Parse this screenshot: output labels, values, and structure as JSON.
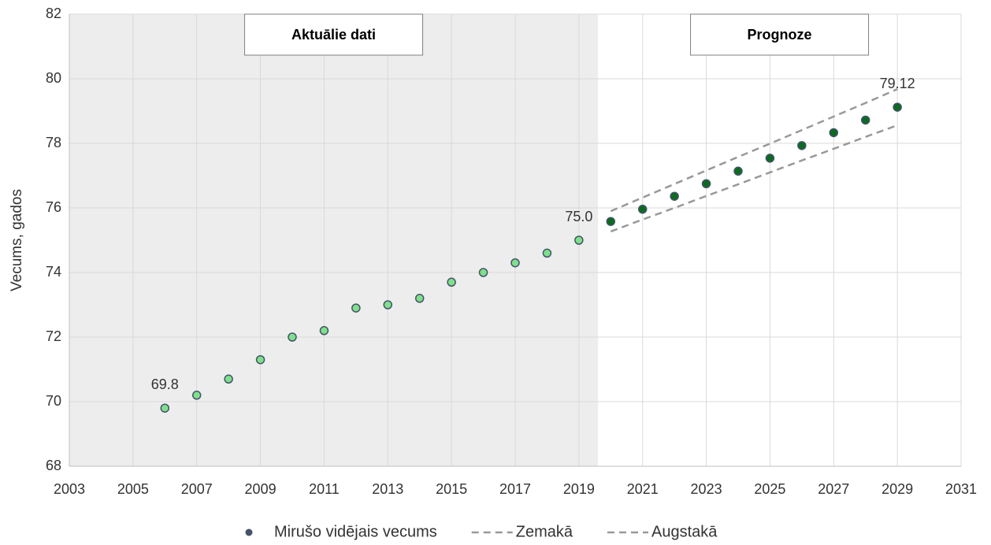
{
  "chart_data": {
    "type": "scatter",
    "ylabel": "Vecums, gados",
    "xlim": [
      2003,
      2031
    ],
    "xticks": [
      2003,
      2005,
      2007,
      2009,
      2011,
      2013,
      2015,
      2017,
      2019,
      2021,
      2023,
      2025,
      2027,
      2029,
      2031
    ],
    "ylim": [
      68,
      82
    ],
    "yticks": [
      68,
      70,
      72,
      74,
      76,
      78,
      80,
      82
    ],
    "grid": true,
    "regions": [
      {
        "label": "Aktuālie dati",
        "xlim": [
          2003,
          2019.6
        ],
        "color": "#ededed",
        "marker_fill": "#7ee08a"
      },
      {
        "label": "Prognoze",
        "xlim": [
          2019.6,
          2031
        ],
        "color": "#ffffff",
        "marker_fill": "#0b6b1f"
      }
    ],
    "series": [
      {
        "name": "Mirušo vidējais vecums",
        "color": "#44546a",
        "style": "marker",
        "x": [
          2006,
          2007,
          2008,
          2009,
          2010,
          2011,
          2012,
          2013,
          2014,
          2015,
          2016,
          2017,
          2018,
          2019,
          2020,
          2021,
          2022,
          2023,
          2024,
          2025,
          2026,
          2027,
          2028,
          2029
        ],
        "values": [
          69.8,
          70.2,
          70.7,
          71.3,
          72.0,
          72.2,
          72.9,
          73.0,
          73.2,
          73.7,
          74.0,
          74.3,
          74.6,
          75.0,
          75.58,
          75.96,
          76.36,
          76.75,
          77.14,
          77.54,
          77.93,
          78.33,
          78.72,
          79.12
        ],
        "value_labels": [
          "69.8",
          null,
          null,
          null,
          null,
          null,
          null,
          null,
          null,
          null,
          null,
          null,
          null,
          "75.0",
          null,
          null,
          null,
          null,
          null,
          null,
          null,
          null,
          null,
          "79.12"
        ]
      },
      {
        "name": "Zemakā",
        "color": "#999999",
        "style": "dashed",
        "x": [
          2020,
          2021,
          2022,
          2023,
          2024,
          2025,
          2026,
          2027,
          2028,
          2029
        ],
        "values": [
          75.27,
          75.64,
          76.0,
          76.37,
          76.73,
          77.1,
          77.47,
          77.83,
          78.2,
          78.56
        ]
      },
      {
        "name": "Augstakā",
        "color": "#999999",
        "style": "dashed",
        "x": [
          2020,
          2021,
          2022,
          2023,
          2024,
          2025,
          2026,
          2027,
          2028,
          2029
        ],
        "values": [
          75.9,
          76.32,
          76.74,
          77.16,
          77.58,
          77.99,
          78.41,
          78.83,
          79.25,
          79.68
        ]
      }
    ]
  }
}
